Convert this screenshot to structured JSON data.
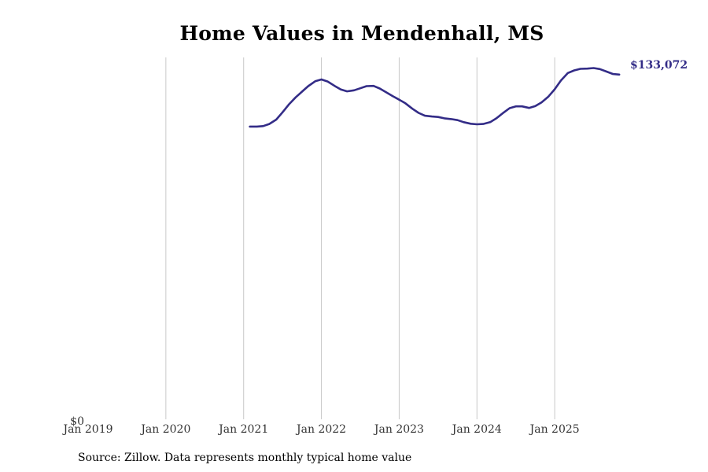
{
  "chart_data": {
    "type": "line",
    "title": "Home Values in Mendenhall, MS",
    "xlabel": "",
    "ylabel": "",
    "x_ticks": [
      "Jan 2019",
      "Jan 2020",
      "Jan 2021",
      "Jan 2022",
      "Jan 2023",
      "Jan 2024",
      "Jan 2025"
    ],
    "y_tick_label": "$0",
    "xlim": [
      2019.0,
      2026.0
    ],
    "ylim": [
      0,
      139700
    ],
    "grid": "vertical",
    "series": [
      {
        "name": "Typical home value",
        "color": "#332c87",
        "end_label": "$133,072",
        "x": [
          2021.08,
          2021.17,
          2021.25,
          2021.33,
          2021.42,
          2021.5,
          2021.58,
          2021.67,
          2021.75,
          2021.83,
          2021.92,
          2022.0,
          2022.08,
          2022.17,
          2022.25,
          2022.33,
          2022.42,
          2022.5,
          2022.58,
          2022.67,
          2022.75,
          2022.83,
          2022.92,
          2023.0,
          2023.08,
          2023.17,
          2023.25,
          2023.33,
          2023.42,
          2023.5,
          2023.58,
          2023.67,
          2023.75,
          2023.83,
          2023.92,
          2024.0,
          2024.08,
          2024.17,
          2024.25,
          2024.33,
          2024.42,
          2024.5,
          2024.58,
          2024.67,
          2024.75,
          2024.83,
          2024.92,
          2025.0,
          2025.08,
          2025.17,
          2025.25,
          2025.33,
          2025.42,
          2025.5,
          2025.58,
          2025.67,
          2025.75,
          2025.83
        ],
        "values": [
          113000,
          113000,
          113200,
          114000,
          115700,
          118500,
          121500,
          124300,
          126500,
          128600,
          130500,
          131200,
          130400,
          128700,
          127300,
          126600,
          127000,
          127800,
          128600,
          128700,
          127700,
          126300,
          124700,
          123400,
          122000,
          119900,
          118300,
          117200,
          116900,
          116700,
          116200,
          115900,
          115500,
          114700,
          114100,
          113900,
          114000,
          114700,
          116200,
          118100,
          120100,
          120800,
          120800,
          120200,
          120900,
          122300,
          124600,
          127400,
          130800,
          133700,
          134700,
          135300,
          135400,
          135600,
          135200,
          134200,
          133300,
          133072
        ]
      }
    ]
  },
  "source": "Source: Zillow. Data represents monthly typical home value"
}
